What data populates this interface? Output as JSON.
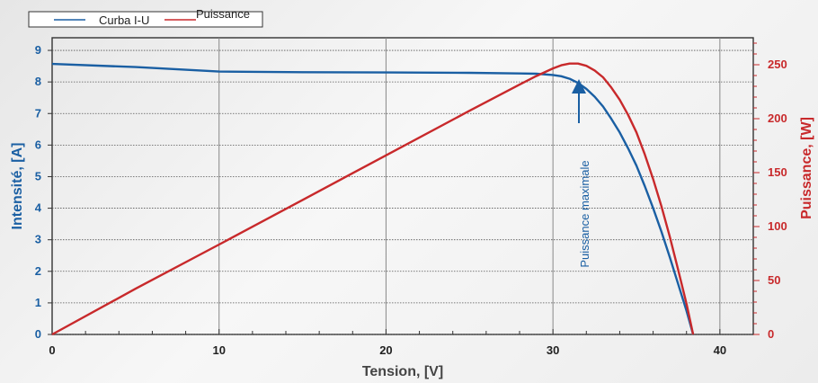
{
  "chart_data": {
    "type": "line",
    "title": "",
    "xlabel": "Tension, [V]",
    "ylabel_left": "Intensité, [A]",
    "ylabel_right": "Puissance, [W]",
    "xlim": [
      0,
      42
    ],
    "ylim_left": [
      0,
      9.4
    ],
    "ylim_right": [
      0,
      275
    ],
    "x_major_ticks": [
      0,
      10,
      20,
      30,
      40
    ],
    "y_left_ticks": [
      0,
      1,
      2,
      3,
      4,
      5,
      6,
      7,
      8,
      9
    ],
    "y_right_ticks": [
      0,
      50,
      100,
      150,
      200,
      250
    ],
    "grid": true,
    "legend_position": "top-left",
    "colors": {
      "current": "#1a5fa3",
      "power": "#c8292b"
    },
    "series": [
      {
        "name": "Curba I-U",
        "axis": "left",
        "x": [
          0,
          5,
          10,
          15,
          20,
          25,
          28,
          29,
          30,
          30.5,
          31,
          31.5,
          32,
          32.5,
          33,
          33.5,
          34,
          34.5,
          35,
          35.5,
          36,
          36.5,
          37,
          37.5,
          38,
          38.4
        ],
        "values": [
          8.57,
          8.47,
          8.33,
          8.31,
          8.3,
          8.29,
          8.27,
          8.26,
          8.22,
          8.18,
          8.1,
          7.97,
          7.78,
          7.53,
          7.22,
          6.83,
          6.4,
          5.9,
          5.35,
          4.7,
          4.0,
          3.25,
          2.45,
          1.6,
          0.75,
          0.0
        ]
      },
      {
        "name": "Puissance",
        "axis": "right",
        "x": [
          0,
          5,
          10,
          15,
          20,
          25,
          28,
          29,
          30,
          30.5,
          31,
          31.5,
          32,
          32.5,
          33,
          33.5,
          34,
          34.5,
          35,
          35.5,
          36,
          36.5,
          37,
          37.5,
          38,
          38.4
        ],
        "values": [
          0,
          42.4,
          83.3,
          124.7,
          166,
          207.3,
          231.6,
          239.5,
          246.6,
          249.5,
          251.1,
          251.1,
          249,
          244.7,
          238.3,
          228.8,
          217.6,
          203.6,
          187.3,
          166.9,
          144,
          118.6,
          90.7,
          60,
          28.5,
          0
        ]
      }
    ],
    "annotations": [
      {
        "text": "Puissance maximale",
        "x": 31.5,
        "y": 8.0,
        "axis": "left"
      }
    ]
  }
}
